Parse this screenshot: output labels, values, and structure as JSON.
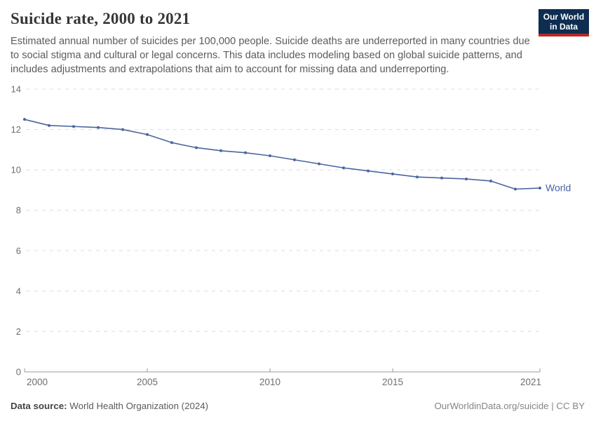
{
  "header": {
    "title": "Suicide rate, 2000 to 2021",
    "subtitle": "Estimated annual number of suicides per 100,000 people. Suicide deaths are underreported in many countries due to social stigma and cultural or legal concerns. This data includes modeling based on global suicide patterns, and includes adjustments and extrapolations that aim to account for missing data and underreporting.",
    "logo": {
      "line1": "Our World",
      "line2": "in Data"
    }
  },
  "colors": {
    "series_blue": "#4a65a0",
    "logo_bg": "#0f2d50",
    "logo_accent": "#bc2723",
    "grid_line": "#dcdcdc",
    "axis_line": "#999999",
    "tick_label": "#6e6e6e"
  },
  "chart_data": {
    "type": "line",
    "title": "Suicide rate, 2000 to 2021",
    "xlabel": "",
    "ylabel": "",
    "ylim": [
      0,
      14
    ],
    "yticks": [
      0,
      2,
      4,
      6,
      8,
      10,
      12,
      14
    ],
    "xticks": [
      2000,
      2005,
      2010,
      2015,
      2021
    ],
    "grid": "horizontal-dashed",
    "legend_position": "end-of-line-label",
    "x": [
      2000,
      2001,
      2002,
      2003,
      2004,
      2005,
      2006,
      2007,
      2008,
      2009,
      2010,
      2011,
      2012,
      2013,
      2014,
      2015,
      2016,
      2017,
      2018,
      2019,
      2020,
      2021
    ],
    "series": [
      {
        "name": "World",
        "values": [
          12.5,
          12.2,
          12.15,
          12.1,
          12.0,
          11.75,
          11.35,
          11.1,
          10.95,
          10.85,
          10.7,
          10.5,
          10.3,
          10.1,
          9.95,
          9.8,
          9.65,
          9.6,
          9.55,
          9.45,
          9.05,
          9.1
        ]
      }
    ]
  },
  "footer": {
    "source_label": "Data source:",
    "source_value": "World Health Organization (2024)",
    "credit": "OurWorldinData.org/suicide | CC BY"
  }
}
